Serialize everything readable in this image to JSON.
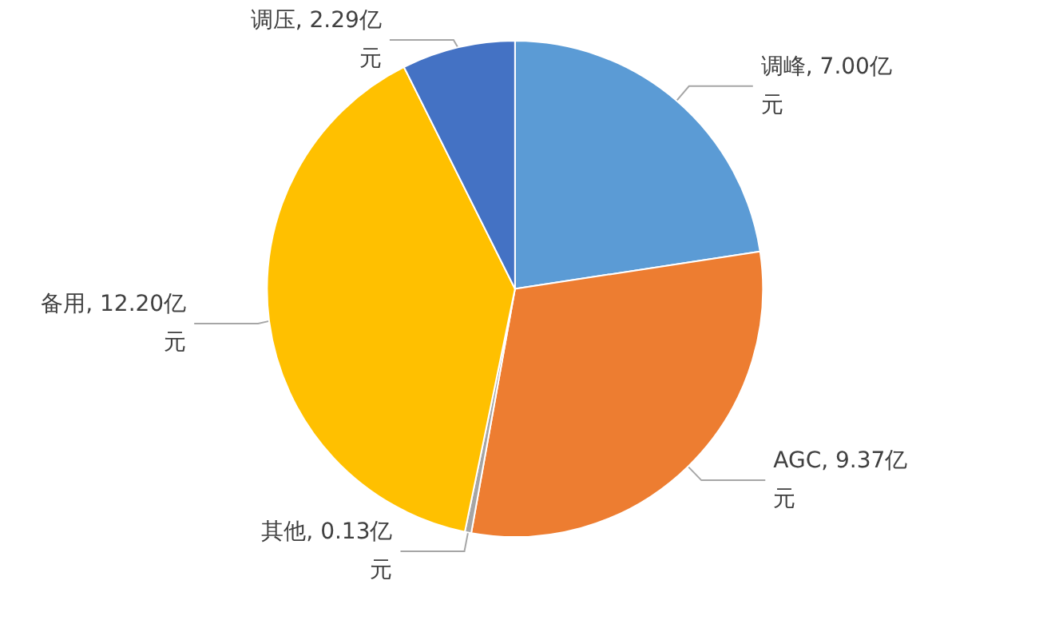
{
  "chart_data": {
    "type": "pie",
    "categories": [
      "调峰",
      "AGC",
      "其他",
      "备用",
      "调压"
    ],
    "values": [
      7.0,
      9.37,
      0.13,
      12.2,
      2.29
    ],
    "value_labels": [
      "7.00亿元",
      "9.37亿元",
      "0.13亿元",
      "12.20亿元",
      "2.29亿元"
    ],
    "colors": [
      "#5b9bd5",
      "#ed7d31",
      "#a5a5a5",
      "#ffc000",
      "#4472c4"
    ],
    "legend": false
  }
}
